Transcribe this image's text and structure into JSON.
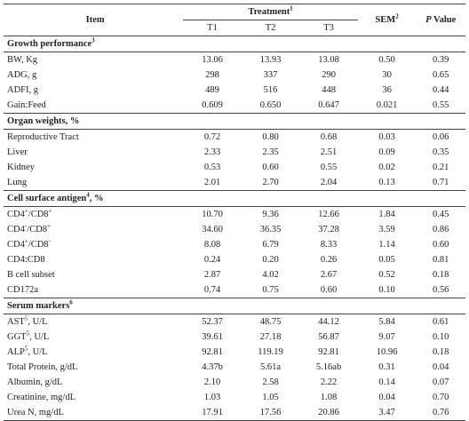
{
  "header": {
    "item": "Item",
    "treatment": "Treatment",
    "treatment_sup": "1",
    "t1": "T1",
    "t2": "T2",
    "t3": "T3",
    "sem": "SEM",
    "sem_sup": "2",
    "p_italic": "P",
    "p_rest": " Value"
  },
  "sections": [
    {
      "title": "Growth performance",
      "title_sup": "3",
      "rows": [
        {
          "label": "BW, Kg",
          "t1": "13.06",
          "t2": "13.93",
          "t3": "13.08",
          "sem": "0.50",
          "p": "0.39"
        },
        {
          "label": "ADG, g",
          "t1": "298",
          "t2": "337",
          "t3": "290",
          "sem": "30",
          "p": "0.65"
        },
        {
          "label": "ADFI, g",
          "t1": "489",
          "t2": "516",
          "t3": "448",
          "sem": "36",
          "p": "0.44"
        },
        {
          "label": "Gain:Feed",
          "t1": "0.609",
          "t2": "0.650",
          "t3": "0.647",
          "sem": "0.021",
          "p": "0.55"
        }
      ]
    },
    {
      "title": "Organ weights, %",
      "title_sup": "",
      "rows": [
        {
          "label": "Reproductive Tract",
          "t1": "0.72",
          "t2": "0.80",
          "t3": "0.68",
          "sem": "0.03",
          "p": "0.06"
        },
        {
          "label": "Liver",
          "t1": "2.33",
          "t2": "2.35",
          "t3": "2.51",
          "sem": "0.09",
          "p": "0.35"
        },
        {
          "label": "Kidney",
          "t1": "0.53",
          "t2": "0.60",
          "t3": "0.55",
          "sem": "0.02",
          "p": "0.21"
        },
        {
          "label": "Lung",
          "t1": "2.01",
          "t2": "2.70",
          "t3": "2.04",
          "sem": "0.13",
          "p": "0.71"
        }
      ]
    },
    {
      "title": "Cell surface antigen",
      "title_sup": "4",
      "title_suffix": ", %",
      "rows": [
        {
          "label": "CD4",
          "label_sup1": "+",
          "label_mid": "/CD8",
          "label_sup2": "+",
          "t1": "10.70",
          "t2": "9.36",
          "t3": "12.66",
          "sem": "1.84",
          "p": "0.45"
        },
        {
          "label": "CD4",
          "label_sup1": "-",
          "label_mid": "/CD8",
          "label_sup2": "+",
          "t1": "34.60",
          "t2": "36.35",
          "t3": "37.28",
          "sem": "3.59",
          "p": "0.86"
        },
        {
          "label": "CD4",
          "label_sup1": "+",
          "label_mid": "/CD8",
          "label_sup2": "-",
          "t1": "8.08",
          "t2": "6.79",
          "t3": "8.33",
          "sem": "1.14",
          "p": "0.60"
        },
        {
          "label": "CD4:CD8",
          "t1": "0.24",
          "t2": "0.20",
          "t3": "0.26",
          "sem": "0.05",
          "p": "0.81"
        },
        {
          "label": "B cell subset",
          "t1": "2.87",
          "t2": "4.02",
          "t3": "2.67",
          "sem": "0.52",
          "p": "0.18"
        },
        {
          "label": "CD172a",
          "t1": "0.74",
          "t2": "0.75",
          "t3": "0.60",
          "sem": "0.10",
          "p": "0.56"
        }
      ]
    },
    {
      "title": "Serum markers",
      "title_sup": "6",
      "rows": [
        {
          "label": "AST",
          "label_sup1": "5",
          "label_mid": ", U/L",
          "t1": "52.37",
          "t2": "48.75",
          "t3": "44.12",
          "sem": "5.84",
          "p": "0.61"
        },
        {
          "label": "GGT",
          "label_sup1": "5",
          "label_mid": ", U/L",
          "t1": "39.61",
          "t2": "27.18",
          "t3": "56.87",
          "sem": "9.07",
          "p": "0.10"
        },
        {
          "label": "ALP",
          "label_sup1": "5",
          "label_mid": ", U/L",
          "t1": "92.81",
          "t2": "119.19",
          "t3": "92.81",
          "sem": "10.96",
          "p": "0.18"
        },
        {
          "label": "Total Protein, g/dL",
          "t1": "4.37b",
          "t2": "5.61a",
          "t3": "5.16ab",
          "sem": "0.31",
          "p": "0.04"
        },
        {
          "label": "Albumin, g/dL",
          "t1": "2.10",
          "t2": "2.58",
          "t3": "2.22",
          "sem": "0.14",
          "p": "0.07"
        },
        {
          "label": "Creatinine, mg/dL",
          "t1": "1.03",
          "t2": "1.05",
          "t3": "1.08",
          "sem": "0.04",
          "p": "0.70"
        },
        {
          "label": "Urea N, mg/dL",
          "t1": "17.91",
          "t2": "17.56",
          "t3": "20.86",
          "sem": "3.47",
          "p": "0.76"
        }
      ]
    }
  ]
}
